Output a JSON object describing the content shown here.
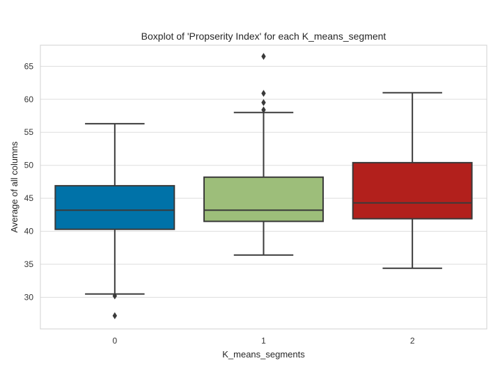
{
  "chart_data": {
    "type": "box",
    "title": "Boxplot of 'Propserity Index' for each K_means_segment",
    "xlabel": "K_means_segments",
    "ylabel": "Average of all columns",
    "categories": [
      "0",
      "1",
      "2"
    ],
    "ylim": [
      25.2,
      68.2
    ],
    "yticks": [
      30,
      35,
      40,
      45,
      50,
      55,
      60,
      65
    ],
    "grid": true,
    "boxes": [
      {
        "category": "0",
        "color": "#0072a8",
        "whisker_low": 30.5,
        "q1": 40.3,
        "median": 43.2,
        "q3": 46.9,
        "whisker_high": 56.3,
        "outliers": [
          30.2,
          27.2
        ]
      },
      {
        "category": "1",
        "color": "#9dbe7a",
        "whisker_low": 36.4,
        "q1": 41.5,
        "median": 43.2,
        "q3": 48.2,
        "whisker_high": 58.0,
        "outliers": [
          58.4,
          59.5,
          60.9,
          66.5
        ]
      },
      {
        "category": "2",
        "color": "#b2201c",
        "whisker_low": 34.4,
        "q1": 41.9,
        "median": 44.3,
        "q3": 50.4,
        "whisker_high": 61.0,
        "outliers": []
      }
    ]
  }
}
